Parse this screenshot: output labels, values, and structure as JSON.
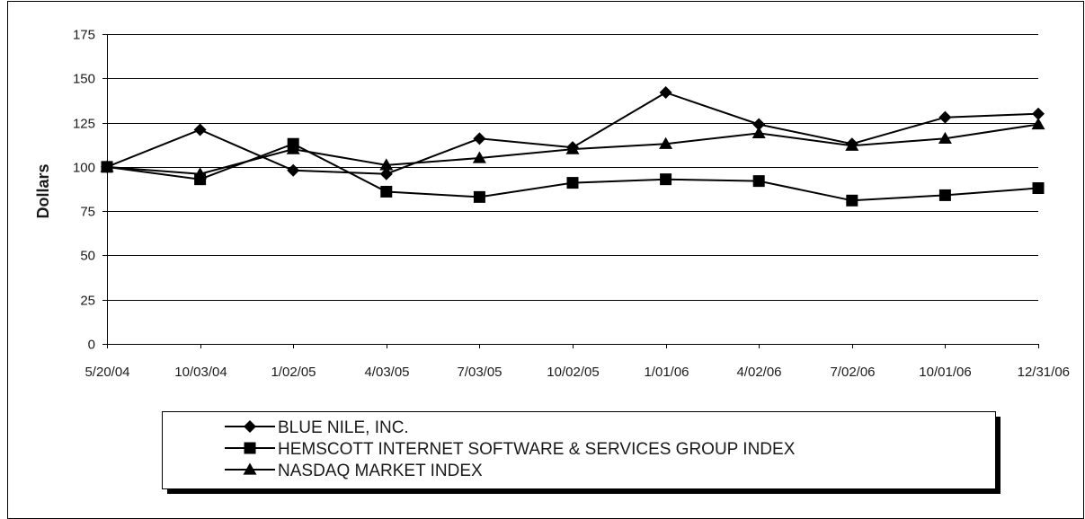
{
  "chart_data": {
    "type": "line",
    "title": "",
    "xlabel": "",
    "ylabel": "Dollars",
    "categories": [
      "5/20/04",
      "10/03/04",
      "1/02/05",
      "4/03/05",
      "7/03/05",
      "10/02/05",
      "1/01/06",
      "4/02/06",
      "7/02/06",
      "10/01/06",
      "12/31/06"
    ],
    "ylim": [
      0,
      175
    ],
    "yticks": [
      "0",
      "25",
      "50",
      "75",
      "100",
      "125",
      "150",
      "175"
    ],
    "grid": "horizontal",
    "legend_position": "bottom",
    "series": [
      {
        "name": "BLUE NILE, INC.",
        "marker": "diamond",
        "values": [
          100,
          121,
          98,
          96,
          116,
          111,
          142,
          124,
          113,
          128,
          130
        ]
      },
      {
        "name": "HEMSCOTT INTERNET SOFTWARE & SERVICES GROUP INDEX",
        "marker": "square",
        "values": [
          100,
          93,
          113,
          86,
          83,
          91,
          93,
          92,
          81,
          84,
          88
        ]
      },
      {
        "name": "NASDAQ MARKET INDEX",
        "marker": "triangle",
        "values": [
          100,
          96,
          110,
          101,
          105,
          110,
          113,
          119,
          112,
          116,
          124
        ]
      }
    ]
  }
}
